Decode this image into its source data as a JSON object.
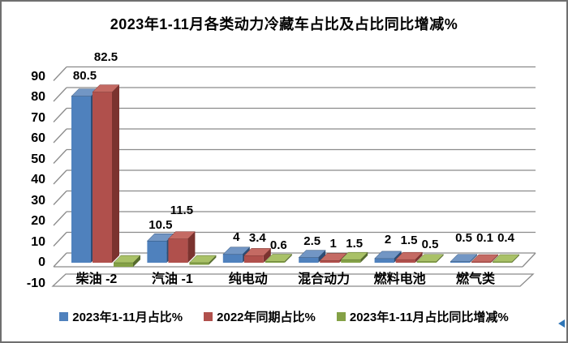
{
  "chart_data": {
    "type": "bar",
    "style": "3d-clustered-column",
    "title": "2023年1-11月各类动力冷藏车占比及占比同比增减%",
    "categories": [
      "柴油",
      "汽油",
      "纯电动",
      "混合动力",
      "燃料电池",
      "燃气类"
    ],
    "series": [
      {
        "name": "2023年1-11月占比%",
        "values": [
          80.5,
          10.5,
          4,
          2.5,
          2,
          0.5
        ],
        "labels": [
          "80.5",
          "10.5",
          "4",
          "2.5",
          "2",
          "0.5"
        ],
        "color": {
          "front": "#4F81BD",
          "top": "#7296C4",
          "side": "#2C4D75"
        }
      },
      {
        "name": "2022年同期占比%",
        "values": [
          82.5,
          11.5,
          3.4,
          1,
          1.5,
          0.1
        ],
        "labels": [
          "82.5",
          "11.5",
          "3.4",
          "1",
          "1.5",
          "0.1"
        ],
        "color": {
          "front": "#B0504C",
          "top": "#C46A63",
          "side": "#7B332F"
        }
      },
      {
        "name": "2023年1-11月占比同比增减%",
        "values": [
          -2,
          -1,
          0.6,
          1.5,
          0.5,
          0.4
        ],
        "labels": [
          "-2",
          "-1",
          "0.6",
          "1.5",
          "0.5",
          "0.4"
        ],
        "color": {
          "front": "#84A146",
          "top": "#A9C167",
          "side": "#566B2E"
        }
      }
    ],
    "y_axis": {
      "min": -10,
      "max": 90,
      "step": 10,
      "tick_labels": [
        "-10",
        "0",
        "10",
        "20",
        "30",
        "40",
        "50",
        "60",
        "70",
        "80",
        "90"
      ]
    },
    "grid": true,
    "legend_position": "bottom",
    "gridline_color": "#8b8b8b",
    "text_color": "#000000",
    "background_color": "#ffffff",
    "frame_border_color": "#6f6f6f",
    "artifact_color": "#2e75b6"
  }
}
